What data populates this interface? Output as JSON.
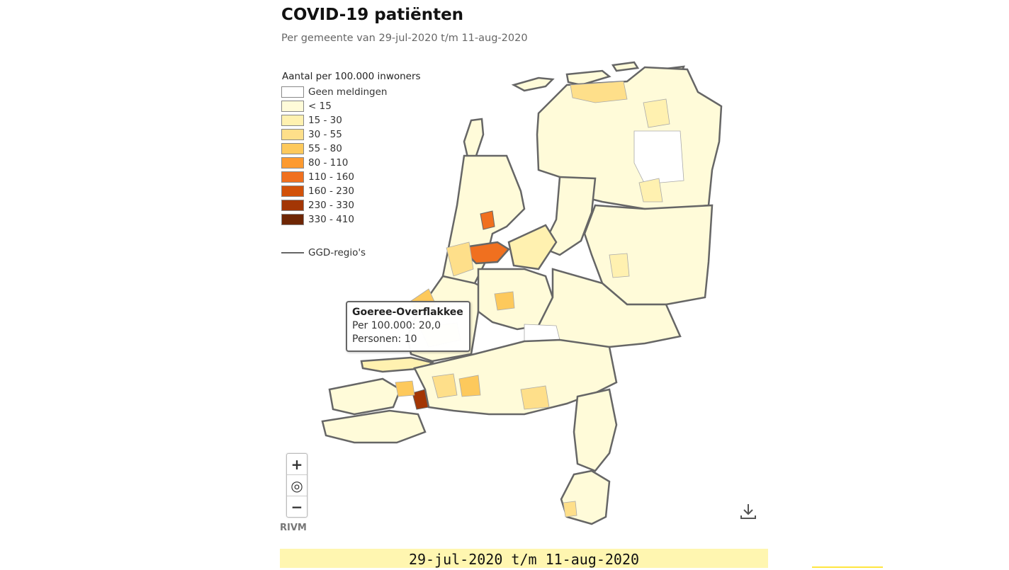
{
  "header": {
    "title": "COVID-19 patiënten",
    "subtitle": "Per gemeente van 29-jul-2020 t/m 11-aug-2020"
  },
  "legend": {
    "title": "Aantal per 100.000 inwoners",
    "items": [
      {
        "label": "Geen meldingen",
        "color": "#ffffff"
      },
      {
        "label": "< 15",
        "color": "#fffbd9"
      },
      {
        "label": "15 - 30",
        "color": "#fff1b0"
      },
      {
        "label": "30 - 55",
        "color": "#fedf8a"
      },
      {
        "label": "55 - 80",
        "color": "#fdc95c"
      },
      {
        "label": "80 - 110",
        "color": "#fd9a30"
      },
      {
        "label": "110 - 160",
        "color": "#f0701f"
      },
      {
        "label": "160 - 230",
        "color": "#d2520a"
      },
      {
        "label": "230 - 330",
        "color": "#a33605"
      },
      {
        "label": "330 - 410",
        "color": "#6e2604"
      }
    ],
    "ggd_label": "GGD-regio's"
  },
  "tooltip": {
    "title": "Goeree-Overflakkee",
    "line1": "Per 100.000: 20,0",
    "line2": "Personen: 10"
  },
  "controls": {
    "zoom_in": "+",
    "reset": "◎",
    "zoom_out": "−"
  },
  "credit": "RIVM",
  "period_label": "29-jul-2020 t/m 11-aug-2020",
  "icons": {
    "download": "download-icon",
    "zoom_in": "plus-icon",
    "reset": "target-icon",
    "zoom_out": "minus-icon"
  }
}
